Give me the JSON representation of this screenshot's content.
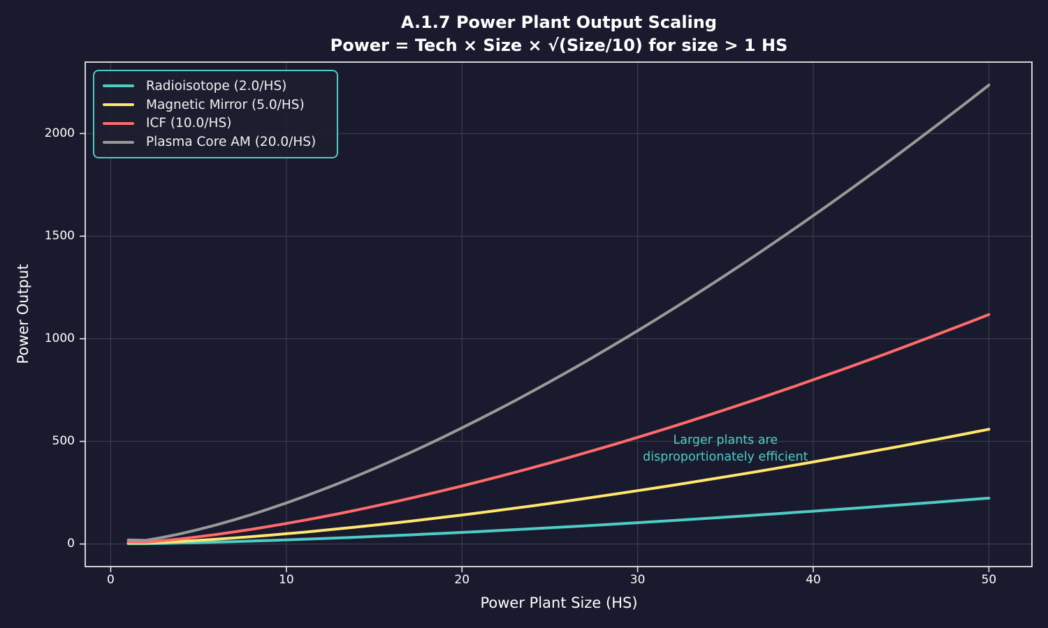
{
  "title": {
    "line1": "A.1.7 Power Plant Output Scaling",
    "line2": "Power = Tech × Size × √(Size/10) for size > 1 HS"
  },
  "colors": {
    "background": "#1a1a2e",
    "grid": "#3b3b4f",
    "spine": "#e8e8e8",
    "tick_text": "#ffffff",
    "annotation": "#4ECDC4",
    "legend_border": "#4ECDC4"
  },
  "chart_data": {
    "type": "line",
    "title": "A.1.7 Power Plant Output Scaling",
    "subtitle": "Power = Tech × Size × √(Size/10) for size > 1 HS",
    "xlabel": "Power Plant Size (HS)",
    "ylabel": "Power Output",
    "xlim": [
      -1.45,
      52.45
    ],
    "ylim": [
      -110,
      2348
    ],
    "xticks": [
      0,
      10,
      20,
      30,
      40,
      50
    ],
    "yticks": [
      0,
      500,
      1000,
      1500,
      2000
    ],
    "grid": true,
    "legend_position": "upper left",
    "formula": "power = tech × size × √(size/10) for size > 1 HS; power = tech × size at size = 1",
    "x": [
      1,
      2,
      3,
      4,
      5,
      6,
      7,
      8,
      9,
      10,
      11,
      12,
      13,
      14,
      15,
      16,
      17,
      18,
      19,
      20,
      21,
      22,
      23,
      24,
      25,
      26,
      27,
      28,
      29,
      30,
      31,
      32,
      33,
      34,
      35,
      36,
      37,
      38,
      39,
      40,
      41,
      42,
      43,
      44,
      45,
      46,
      47,
      48,
      49,
      50
    ],
    "series": [
      {
        "name": "Radioisotope (2.0/HS)",
        "tech": 2.0,
        "color": "#4ECDC4",
        "values": [
          2.0,
          1.8,
          3.3,
          5.1,
          7.1,
          9.3,
          11.7,
          14.3,
          17.1,
          20.0,
          23.1,
          26.3,
          29.6,
          33.1,
          36.7,
          40.5,
          44.3,
          48.3,
          52.4,
          56.6,
          60.9,
          65.3,
          69.8,
          74.4,
          79.1,
          83.8,
          88.7,
          93.7,
          98.8,
          103.9,
          109.2,
          114.5,
          119.9,
          125.4,
          131.0,
          136.6,
          142.3,
          148.2,
          154.0,
          160.0,
          166.0,
          172.1,
          178.3,
          184.6,
          190.9,
          197.3,
          203.8,
          210.3,
          216.9,
          223.6
        ]
      },
      {
        "name": "Magnetic Mirror (5.0/HS)",
        "tech": 5.0,
        "color": "#FFE66D",
        "values": [
          5.0,
          4.5,
          8.2,
          12.6,
          17.7,
          23.2,
          29.3,
          35.8,
          42.7,
          50.0,
          57.7,
          65.7,
          74.1,
          82.8,
          91.9,
          101.2,
          110.8,
          120.7,
          130.9,
          141.4,
          152.2,
          163.2,
          174.4,
          185.9,
          197.6,
          209.6,
          221.8,
          234.3,
          246.9,
          259.8,
          272.9,
          286.2,
          299.7,
          313.5,
          327.4,
          341.5,
          355.9,
          370.4,
          385.1,
          400.0,
          415.1,
          430.4,
          445.8,
          461.5,
          477.3,
          493.3,
          509.5,
          525.8,
          542.3,
          559.0
        ]
      },
      {
        "name": "ICF (10.0/HS)",
        "tech": 10.0,
        "color": "#FF6B6B",
        "values": [
          10.0,
          8.9,
          16.4,
          25.3,
          35.4,
          46.5,
          58.6,
          71.6,
          85.4,
          100.0,
          115.4,
          131.5,
          148.2,
          165.7,
          183.7,
          202.4,
          221.7,
          241.5,
          261.9,
          282.8,
          304.3,
          326.3,
          348.8,
          371.8,
          395.3,
          419.2,
          443.7,
          468.5,
          493.9,
          519.6,
          545.8,
          572.4,
          599.5,
          626.9,
          654.8,
          683.1,
          711.7,
          740.8,
          770.2,
          800.0,
          830.2,
          860.7,
          891.7,
          922.9,
          954.6,
          986.6,
          1018.9,
          1051.6,
          1084.6,
          1118.0
        ]
      },
      {
        "name": "Plasma Core AM (20.0/HS)",
        "tech": 20.0,
        "color": "#999999",
        "values": [
          20.0,
          17.9,
          32.9,
          50.6,
          70.7,
          93.0,
          117.1,
          143.1,
          170.8,
          200.0,
          230.7,
          262.9,
          296.4,
          331.3,
          367.4,
          404.8,
          443.3,
          483.0,
          523.8,
          565.7,
          608.6,
          652.6,
          697.6,
          743.6,
          790.6,
          838.5,
          887.3,
          937.1,
          987.7,
          1039.2,
          1091.6,
          1144.9,
          1199.0,
          1253.9,
          1309.6,
          1366.1,
          1423.4,
          1481.5,
          1540.4,
          1600.0,
          1660.4,
          1721.5,
          1783.3,
          1845.9,
          1909.2,
          1973.2,
          2037.9,
          2103.2,
          2169.3,
          2236.1
        ]
      }
    ],
    "annotation": {
      "text_line1": "Larger plants are",
      "text_line2": "disproportionately efficient",
      "x": 35,
      "y": 464,
      "color": "#4ECDC4"
    }
  }
}
